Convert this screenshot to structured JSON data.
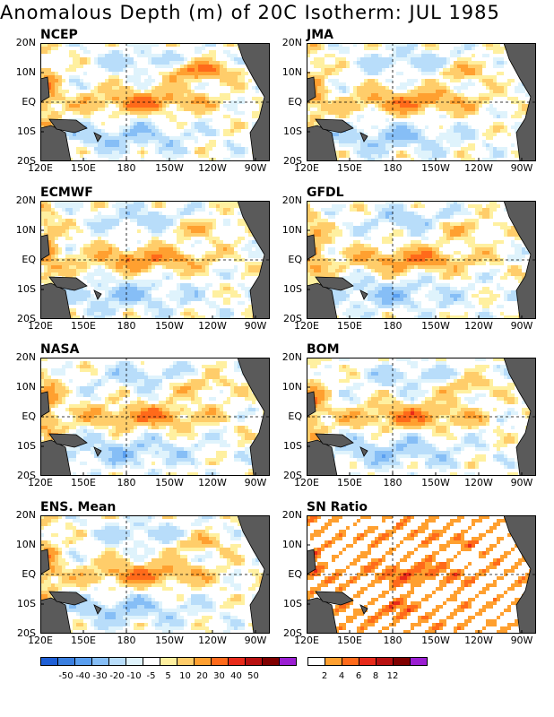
{
  "title": "Anomalous Depth (m) of 20C Isotherm: JUL 1985",
  "panels": [
    {
      "name": "NCEP"
    },
    {
      "name": "JMA"
    },
    {
      "name": "ECMWF"
    },
    {
      "name": "GFDL"
    },
    {
      "name": "NASA"
    },
    {
      "name": "BOM"
    },
    {
      "name": "ENS. Mean"
    },
    {
      "name": "SN Ratio"
    }
  ],
  "lat_labels": [
    "20N",
    "10N",
    "EQ",
    "10S",
    "20S"
  ],
  "lon_labels": [
    "120E",
    "150E",
    "180",
    "150W",
    "120W",
    "90W"
  ],
  "legend_anomaly": {
    "colors": [
      "#1e5fd6",
      "#3a7fe0",
      "#5a9ff0",
      "#86bef6",
      "#b8ddfa",
      "#dff3fc",
      "#ffffff",
      "#fff0a0",
      "#ffcd6a",
      "#ffa030",
      "#ff6a1a",
      "#e82a1a",
      "#b81010",
      "#800000",
      "#9b1ed2"
    ],
    "labels": [
      "-50",
      "-40",
      "-30",
      "-20",
      "-10",
      "-5",
      "5",
      "10",
      "20",
      "30",
      "40",
      "50"
    ]
  },
  "legend_sn": {
    "colors": [
      "#ffffff",
      "#ffa030",
      "#ff6a1a",
      "#e82a1a",
      "#b81010",
      "#800000",
      "#9b1ed2"
    ],
    "labels": [
      "2",
      "4",
      "6",
      "8",
      "12"
    ]
  }
}
